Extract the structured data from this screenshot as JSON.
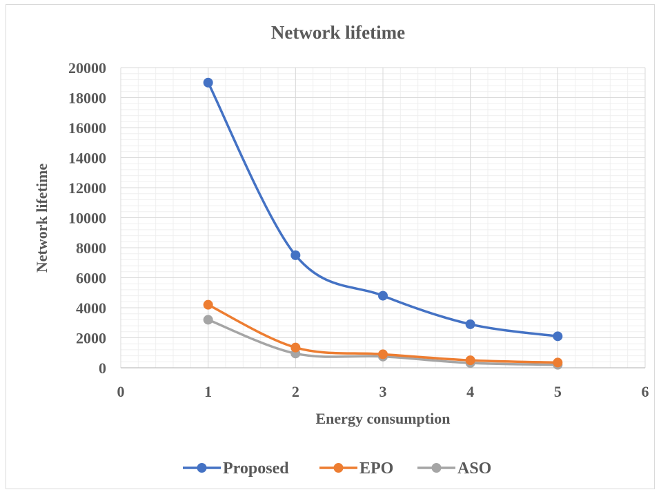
{
  "chart_data": {
    "type": "line",
    "title": "Network lifetime",
    "xlabel": "Energy consumption",
    "ylabel": "Network lifetime",
    "xlim": [
      0,
      6
    ],
    "ylim": [
      0,
      20000
    ],
    "x_ticks": [
      0,
      1,
      2,
      3,
      4,
      5,
      6
    ],
    "y_ticks": [
      0,
      2000,
      4000,
      6000,
      8000,
      10000,
      12000,
      14000,
      16000,
      18000,
      20000
    ],
    "grid": true,
    "smooth": true,
    "legend_position": "bottom",
    "x": [
      1,
      2,
      3,
      4,
      5
    ],
    "series": [
      {
        "name": "Proposed",
        "color": "#4472c4",
        "values": [
          19000,
          7500,
          4800,
          2900,
          2100
        ]
      },
      {
        "name": "EPO",
        "color": "#ed7d31",
        "values": [
          4200,
          1350,
          900,
          500,
          350
        ]
      },
      {
        "name": "ASO",
        "color": "#a5a5a5",
        "values": [
          3200,
          950,
          750,
          320,
          200
        ]
      }
    ]
  }
}
